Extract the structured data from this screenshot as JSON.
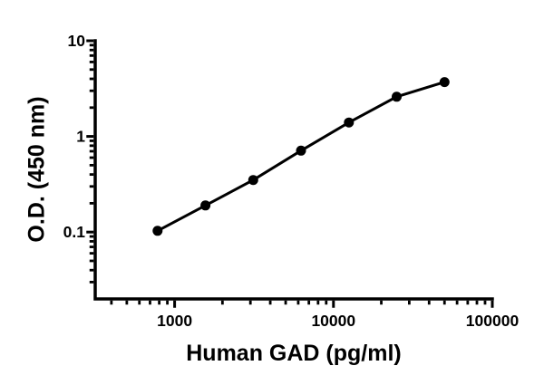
{
  "chart_data": {
    "type": "scatter",
    "xlabel": "Human GAD (pg/ml)",
    "ylabel": "O.D. (450 nm)",
    "x_scale": "log",
    "y_scale": "log",
    "xlim": [
      316.23,
      100000
    ],
    "ylim": [
      0.02,
      10
    ],
    "grid": false,
    "legend": false,
    "x_major_ticks": [
      1000,
      10000,
      100000
    ],
    "x_major_tick_labels": [
      "1000",
      "10000",
      "100000"
    ],
    "x_minor_ticks": [
      400,
      500,
      600,
      700,
      800,
      900,
      2000,
      3000,
      4000,
      5000,
      6000,
      7000,
      8000,
      9000,
      20000,
      30000,
      40000,
      50000,
      60000,
      70000,
      80000,
      90000
    ],
    "y_major_ticks": [
      10,
      1,
      0.1
    ],
    "y_major_tick_labels": [
      "10",
      "1",
      "0.1"
    ],
    "y_minor_ticks": [
      0.03,
      0.04,
      0.05,
      0.06,
      0.07,
      0.08,
      0.09,
      0.2,
      0.3,
      0.4,
      0.5,
      0.6,
      0.7,
      0.8,
      0.9,
      2,
      3,
      4,
      5,
      6,
      7,
      8,
      9
    ],
    "series": [
      {
        "marker": "filled-circle",
        "color": "#000000",
        "x": [
          781.25,
          1562.5,
          3125,
          6250,
          12500,
          25000,
          50000
        ],
        "y": [
          0.103,
          0.19,
          0.35,
          0.71,
          1.4,
          2.6,
          3.7
        ]
      }
    ],
    "axis_color": "#000000",
    "background_color": "#ffffff"
  }
}
